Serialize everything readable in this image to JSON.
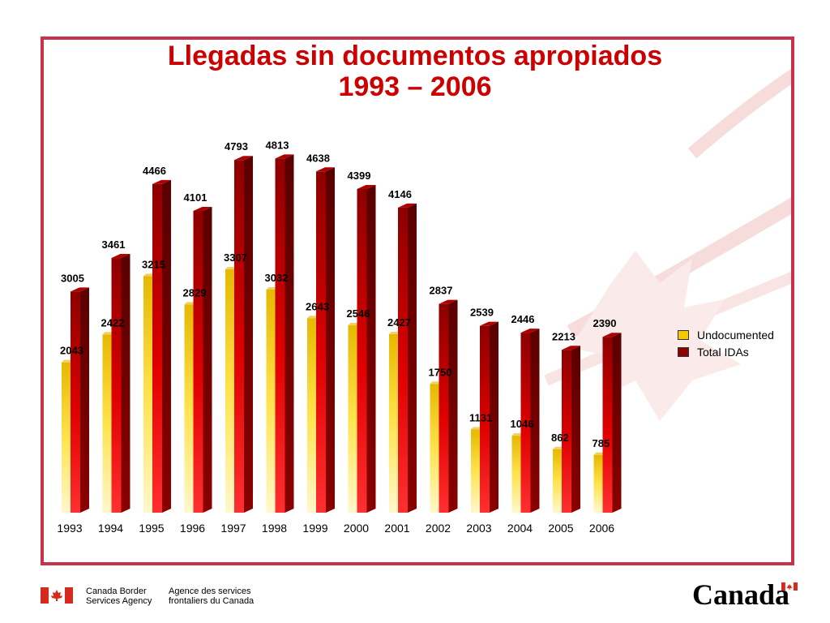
{
  "title_line1": "Llegadas sin documentos apropiados",
  "title_line2": "1993 – 2006",
  "chart_data": {
    "type": "bar",
    "title": "Llegadas sin documentos apropiados 1993 – 2006",
    "categories": [
      "1993",
      "1994",
      "1995",
      "1996",
      "1997",
      "1998",
      "1999",
      "2000",
      "2001",
      "2002",
      "2003",
      "2004",
      "2005",
      "2006"
    ],
    "series": [
      {
        "name": "Undocumented",
        "values": [
          2043,
          2422,
          3215,
          2829,
          3307,
          3032,
          2643,
          2546,
          2427,
          1750,
          1131,
          1046,
          862,
          785
        ],
        "color": "#f5c800"
      },
      {
        "name": "Total IDAs",
        "values": [
          3005,
          3461,
          4466,
          4101,
          4793,
          4813,
          4638,
          4399,
          4146,
          2837,
          2539,
          2446,
          2213,
          2390
        ],
        "color": "#a80000"
      }
    ],
    "ylim": [
      0,
      5000
    ],
    "grid": false,
    "legend_position": "right",
    "data_labels": true
  },
  "footer": {
    "agency_en_line1": "Canada Border",
    "agency_en_line2": "Services Agency",
    "agency_fr_line1": "Agence des services",
    "agency_fr_line2": "frontaliers du Canada",
    "wordmark": "Canada"
  },
  "colors": {
    "frame": "#c8324a",
    "title": "#cc0000"
  }
}
